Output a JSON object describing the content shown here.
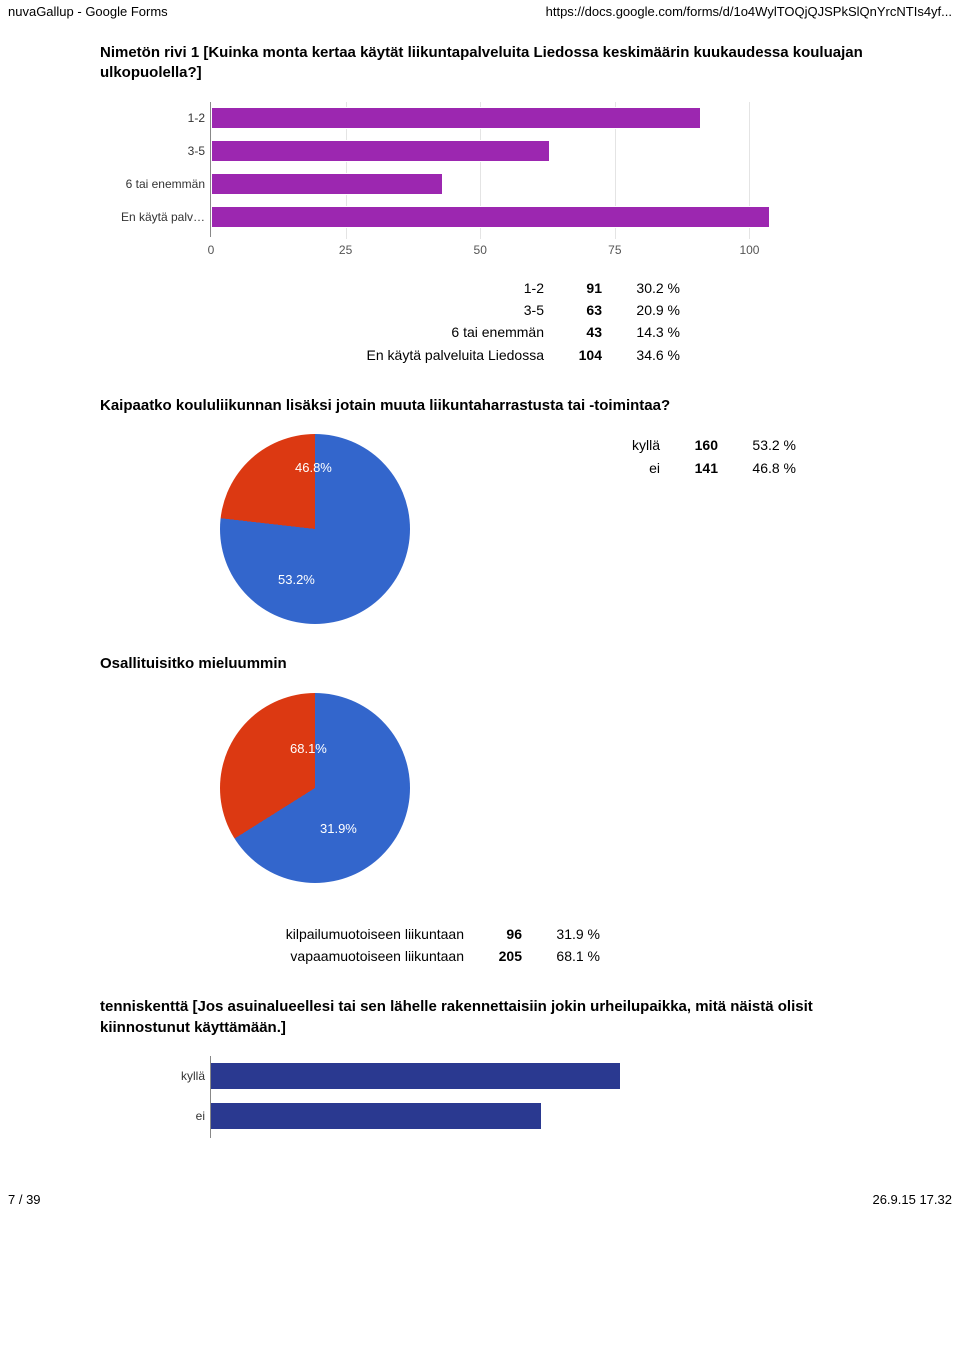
{
  "header": {
    "left": "nuvaGallup - Google Forms",
    "right": "https://docs.google.com/forms/d/1o4WylTOQjQJSPkSlQnYrcNTIs4yf..."
  },
  "footer": {
    "left": "7 / 39",
    "right": "26.9.15 17.32"
  },
  "q1": {
    "title": "Nimetön rivi 1 [Kuinka monta kertaa käytät liikuntapalveluita Liedossa keskimäärin kuukaudessa kouluajan ulkopuolella?]",
    "type": "bar",
    "xmax": 104,
    "ticks": [
      0,
      25,
      50,
      75,
      100
    ],
    "bar_color": "#9c27b0",
    "rows": [
      {
        "label": "1-2",
        "value": 91
      },
      {
        "label": "3-5",
        "value": 63
      },
      {
        "label": "6 tai enemmän",
        "value": 43
      },
      {
        "label": "En käytä palv…",
        "value": 104
      }
    ],
    "table": [
      {
        "label": "1-2",
        "count": "91",
        "pct": "30.2 %"
      },
      {
        "label": "3-5",
        "count": "63",
        "pct": "20.9 %"
      },
      {
        "label": "6 tai enemmän",
        "count": "43",
        "pct": "14.3 %"
      },
      {
        "label": "En käytä palveluita Liedossa",
        "count": "104",
        "pct": "34.6 %"
      }
    ]
  },
  "q2": {
    "title": "Kaipaatko koululiikunnan lisäksi jotain muuta liikuntaharrastusta tai -toimintaa?",
    "type": "pie",
    "slices": [
      {
        "label": "kyllä",
        "value": 53.2,
        "color": "#3366cc",
        "display": "53.2%"
      },
      {
        "label": "ei",
        "value": 46.8,
        "color": "#dc3912",
        "display": "46.8%"
      }
    ],
    "table": [
      {
        "label": "kyllä",
        "count": "160",
        "pct": "53.2 %"
      },
      {
        "label": "ei",
        "count": "141",
        "pct": "46.8 %"
      }
    ]
  },
  "q3": {
    "title": "Osallituisitko mieluummin",
    "type": "pie",
    "slices": [
      {
        "label": "kilpailumuotoiseen",
        "value": 31.9,
        "color": "#3366cc",
        "display": "31.9%"
      },
      {
        "label": "vapaamuotoiseen",
        "value": 68.1,
        "color": "#dc3912",
        "display": "68.1%"
      }
    ],
    "table": [
      {
        "label": "kilpailumuotoiseen liikuntaan",
        "count": "96",
        "pct": "31.9 %"
      },
      {
        "label": "vapaamuotoiseen liikuntaan",
        "count": "205",
        "pct": "68.1 %"
      }
    ]
  },
  "q4": {
    "title": "tenniskenttä [Jos asuinalueellesi tai sen lähelle rakennettaisiin jokin urheilupaikka, mitä näistä olisit kiinnostunut käyttämään.]",
    "type": "bar",
    "xmax": 200,
    "bar_color": "#2a3990",
    "rows": [
      {
        "label": "kyllä",
        "value": 146
      },
      {
        "label": "ei",
        "value": 118
      }
    ]
  }
}
